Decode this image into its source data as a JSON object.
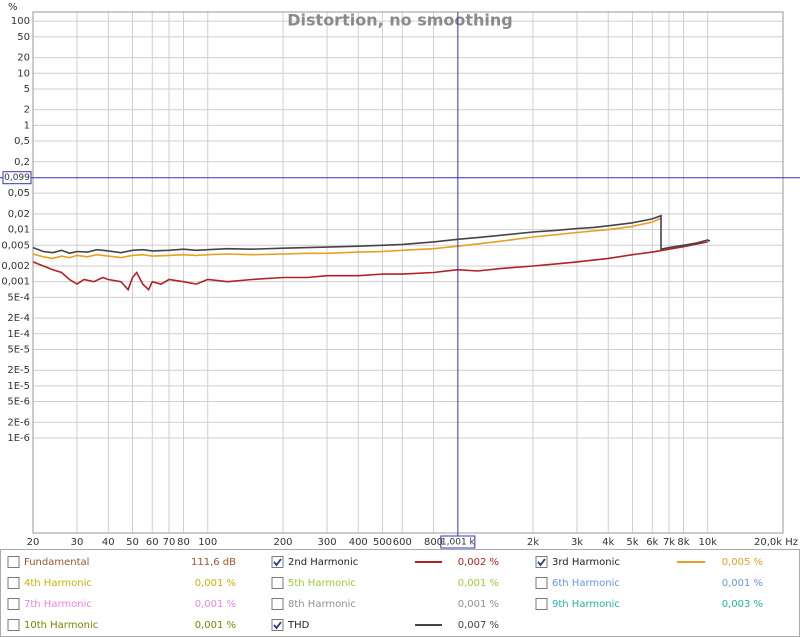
{
  "chart_data": {
    "type": "line",
    "title": "Distortion, no smoothing",
    "y_unit": "%",
    "log_x": true,
    "log_y": true,
    "grid": true,
    "xlim": [
      20,
      20000
    ],
    "ylim": [
      1.5e-08,
      150
    ],
    "xticks": [
      20,
      30,
      40,
      50,
      60,
      70,
      80,
      100,
      200,
      300,
      400,
      500,
      600,
      800,
      {
        "value": 2000,
        "label": "2k"
      },
      {
        "value": 3000,
        "label": "3k"
      },
      {
        "value": 4000,
        "label": "4k"
      },
      {
        "value": 5000,
        "label": "5k"
      },
      {
        "value": 6000,
        "label": "6k"
      },
      {
        "value": 7000,
        "label": "7k"
      },
      {
        "value": 8000,
        "label": "8k"
      },
      {
        "value": 10000,
        "label": "10k"
      },
      {
        "value": 20000,
        "label": "20,0k Hz"
      }
    ],
    "yticks": [
      100,
      50,
      20,
      10,
      5,
      2,
      1,
      {
        "value": 0.5,
        "label": "0,5"
      },
      {
        "value": 0.2,
        "label": "0,2"
      },
      {
        "value": 0.05,
        "label": "0,05"
      },
      {
        "value": 0.02,
        "label": "0,02"
      },
      {
        "value": 0.01,
        "label": "0,01"
      },
      {
        "value": 0.005,
        "label": "0,005"
      },
      {
        "value": 0.002,
        "label": "0,002"
      },
      {
        "value": 0.001,
        "label": "0,001"
      },
      {
        "value": 0.0005,
        "label": "5E-4"
      },
      {
        "value": 0.0002,
        "label": "2E-4"
      },
      {
        "value": 0.0001,
        "label": "1E-4"
      },
      {
        "value": 5e-05,
        "label": "5E-5"
      },
      {
        "value": 2e-05,
        "label": "2E-5"
      },
      {
        "value": 1e-05,
        "label": "1E-5"
      },
      {
        "value": 5e-06,
        "label": "5E-6"
      },
      {
        "value": 2e-06,
        "label": "2E-6"
      },
      {
        "value": 1e-06,
        "label": "1E-6"
      }
    ],
    "cursor": {
      "x": {
        "value": 1001,
        "label": "1,001 k"
      },
      "y": {
        "value": 0.099,
        "label": "0,099"
      },
      "color": "#3333bb"
    },
    "series": [
      {
        "name": "2nd Harmonic",
        "color": "#b22222",
        "checked": true,
        "reading": "0,002 %",
        "x": [
          20,
          22,
          24,
          26,
          28,
          30,
          32,
          35,
          38,
          40,
          45,
          48,
          50,
          52,
          55,
          58,
          60,
          65,
          70,
          80,
          90,
          100,
          120,
          150,
          200,
          250,
          300,
          400,
          500,
          600,
          800,
          1000,
          1200,
          1500,
          2000,
          2500,
          3000,
          4000,
          5000,
          6000,
          7000,
          8000,
          10000
        ],
        "values": [
          0.0024,
          0.002,
          0.0017,
          0.0015,
          0.0011,
          0.0009,
          0.0011,
          0.001,
          0.0012,
          0.0011,
          0.001,
          0.0007,
          0.0012,
          0.0015,
          0.0009,
          0.0007,
          0.001,
          0.0009,
          0.0011,
          0.001,
          0.0009,
          0.0011,
          0.001,
          0.0011,
          0.0012,
          0.0012,
          0.0013,
          0.0013,
          0.0014,
          0.0014,
          0.0015,
          0.0017,
          0.0016,
          0.0018,
          0.002,
          0.0022,
          0.0024,
          0.0028,
          0.0033,
          0.0037,
          0.0042,
          0.0047,
          0.0058
        ]
      },
      {
        "name": "3rd Harmonic",
        "color": "#e8a020",
        "checked": true,
        "reading": "0,005 %",
        "x": [
          20,
          22,
          24,
          26,
          28,
          30,
          33,
          36,
          40,
          45,
          50,
          55,
          60,
          70,
          80,
          90,
          100,
          120,
          150,
          200,
          250,
          300,
          400,
          500,
          600,
          800,
          1000,
          1200,
          1500,
          2000,
          2500,
          3000,
          4000,
          5000,
          6000,
          6500
        ],
        "values": [
          0.0034,
          0.003,
          0.0028,
          0.0031,
          0.0029,
          0.0032,
          0.003,
          0.0033,
          0.0031,
          0.0029,
          0.0032,
          0.0033,
          0.0031,
          0.0032,
          0.0033,
          0.0032,
          0.0033,
          0.0034,
          0.0033,
          0.0034,
          0.0035,
          0.0035,
          0.0037,
          0.0038,
          0.004,
          0.0043,
          0.0048,
          0.0053,
          0.006,
          0.0072,
          0.008,
          0.0088,
          0.01,
          0.0115,
          0.014,
          0.0165
        ]
      },
      {
        "name": "THD",
        "color": "#444444",
        "checked": true,
        "reading": "0,007 %",
        "x": [
          20,
          22,
          24,
          26,
          28,
          30,
          33,
          36,
          40,
          45,
          50,
          55,
          60,
          70,
          80,
          90,
          100,
          120,
          150,
          200,
          250,
          300,
          400,
          500,
          600,
          800,
          1000,
          1200,
          1500,
          2000,
          2500,
          3000,
          3500,
          4000,
          5000,
          6000,
          6500,
          6500,
          7000,
          8000,
          9000,
          10000,
          10200
        ],
        "values": [
          0.0045,
          0.0038,
          0.0036,
          0.004,
          0.0035,
          0.0038,
          0.0037,
          0.0041,
          0.0039,
          0.0036,
          0.004,
          0.0041,
          0.0039,
          0.004,
          0.0042,
          0.004,
          0.0041,
          0.0043,
          0.0042,
          0.0044,
          0.0045,
          0.0046,
          0.0048,
          0.005,
          0.0052,
          0.0058,
          0.0065,
          0.007,
          0.0078,
          0.009,
          0.0097,
          0.0105,
          0.011,
          0.0118,
          0.0135,
          0.016,
          0.0185,
          0.0042,
          0.0045,
          0.005,
          0.0055,
          0.0063,
          0.006
        ]
      }
    ],
    "other_channels": [
      {
        "name": "Fundamental",
        "color": "#a0522d",
        "checked": false,
        "reading": "111,6 dB"
      },
      {
        "name": "4th Harmonic",
        "color": "#c8b400",
        "checked": false,
        "reading": "0,001 %"
      },
      {
        "name": "5th Harmonic",
        "color": "#9acd32",
        "checked": false,
        "reading": "0,001 %"
      },
      {
        "name": "6th Harmonic",
        "color": "#6495ed",
        "checked": false,
        "reading": "0,001 %"
      },
      {
        "name": "7th Harmonic",
        "color": "#ee82ee",
        "checked": false,
        "reading": "0,001 %"
      },
      {
        "name": "8th Harmonic",
        "color": "#909090",
        "checked": false,
        "reading": "0,001 %"
      },
      {
        "name": "9th Harmonic",
        "color": "#20b2aa",
        "checked": false,
        "reading": "0,003 %"
      },
      {
        "name": "10th Harmonic",
        "color": "#808000",
        "checked": false,
        "reading": "0,001 %"
      }
    ]
  }
}
